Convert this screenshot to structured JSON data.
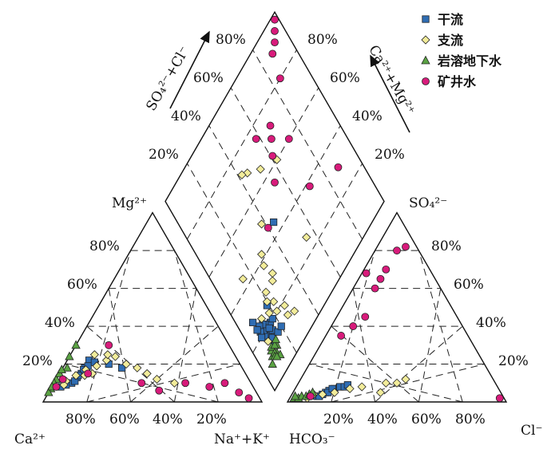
{
  "chart_data": {
    "type": "scatter",
    "series": [
      {
        "name": "干流",
        "color": "#2f6db3",
        "marker": "square",
        "cation": [
          [
            68,
            22,
            10
          ],
          [
            72,
            18,
            10
          ],
          [
            75,
            15,
            10
          ],
          [
            78,
            13,
            9
          ],
          [
            82,
            10,
            8
          ],
          [
            85,
            9,
            6
          ],
          [
            88,
            8,
            4
          ],
          [
            73,
            17,
            10
          ],
          [
            70,
            19,
            11
          ],
          [
            66,
            21,
            13
          ],
          [
            80,
            11,
            9
          ],
          [
            77,
            14,
            9
          ],
          [
            60,
            20,
            20
          ],
          [
            55,
            18,
            27
          ]
        ],
        "anion": [
          [
            85,
            3,
            12
          ],
          [
            82,
            4,
            14
          ],
          [
            80,
            5,
            15
          ],
          [
            78,
            6,
            16
          ],
          [
            75,
            7,
            18
          ],
          [
            72,
            8,
            20
          ],
          [
            70,
            8,
            22
          ],
          [
            68,
            9,
            23
          ],
          [
            84,
            3,
            13
          ],
          [
            79,
            5,
            16
          ],
          [
            76,
            7,
            17
          ]
        ],
        "diamond": [
          [
            16,
            14
          ],
          [
            18,
            12
          ],
          [
            20,
            16
          ],
          [
            19,
            10
          ],
          [
            22,
            13
          ],
          [
            21,
            11
          ],
          [
            17,
            15
          ],
          [
            15,
            13
          ],
          [
            23,
            12
          ],
          [
            24,
            10
          ],
          [
            20,
            18
          ],
          [
            19,
            14
          ],
          [
            14,
            17
          ],
          [
            28,
            8
          ],
          [
            26,
            19
          ],
          [
            12,
            12
          ],
          [
            22,
            9
          ],
          [
            20,
            8
          ],
          [
            14,
            20
          ],
          [
            45,
            44
          ],
          [
            24,
            8
          ]
        ]
      },
      {
        "name": "支流",
        "color": "#f2ec9a",
        "marker": "diamond",
        "cation": [
          [
            60,
            22,
            18
          ],
          [
            58,
            25,
            17
          ],
          [
            55,
            24,
            21
          ],
          [
            52,
            20,
            28
          ],
          [
            48,
            18,
            34
          ],
          [
            45,
            15,
            40
          ],
          [
            42,
            12,
            46
          ],
          [
            35,
            10,
            55
          ],
          [
            72,
            17,
            11
          ],
          [
            78,
            14,
            8
          ],
          [
            84,
            11,
            5
          ],
          [
            86,
            9,
            5
          ],
          [
            70,
            15,
            15
          ],
          [
            66,
            19,
            15
          ],
          [
            74,
            14,
            12
          ],
          [
            64,
            25,
            11
          ]
        ],
        "anion": [
          [
            90,
            2,
            8
          ],
          [
            86,
            4,
            10
          ],
          [
            82,
            4,
            14
          ],
          [
            76,
            5,
            19
          ],
          [
            68,
            7,
            25
          ],
          [
            62,
            8,
            30
          ],
          [
            55,
            5,
            40
          ],
          [
            50,
            10,
            40
          ],
          [
            45,
            10,
            45
          ],
          [
            40,
            12,
            48
          ]
        ],
        "diamond": [
          [
            14,
            26
          ],
          [
            20,
            22
          ],
          [
            24,
            23
          ],
          [
            18,
            27
          ],
          [
            12,
            30
          ],
          [
            25,
            13
          ],
          [
            27,
            20
          ],
          [
            23,
            18
          ],
          [
            30,
            28
          ],
          [
            32,
            30
          ],
          [
            38,
            28
          ],
          [
            42,
            30
          ],
          [
            44,
            15
          ],
          [
            50,
            38
          ],
          [
            60,
            62
          ],
          [
            65,
            52
          ],
          [
            70,
            45
          ],
          [
            72,
            42
          ],
          [
            26,
            55
          ],
          [
            30,
            22
          ],
          [
            16,
            10
          ]
        ]
      },
      {
        "name": "岩溶地下水",
        "color": "#5aa243",
        "marker": "triangle",
        "cation": [
          [
            88,
            12,
            0
          ],
          [
            90,
            10,
            0
          ],
          [
            93,
            7,
            0
          ],
          [
            95,
            5,
            0
          ],
          [
            85,
            15,
            0
          ],
          [
            80,
            18,
            2
          ],
          [
            76,
            24,
            0
          ],
          [
            70,
            30,
            0
          ],
          [
            83,
            17,
            0
          ],
          [
            92,
            8,
            0
          ]
        ],
        "anion": [
          [
            96,
            2,
            2
          ],
          [
            94,
            2,
            4
          ],
          [
            92,
            3,
            5
          ],
          [
            90,
            3,
            7
          ],
          [
            88,
            4,
            8
          ],
          [
            86,
            5,
            9
          ],
          [
            95,
            3,
            2
          ]
        ],
        "diamond": [
          [
            8,
            6
          ],
          [
            10,
            8
          ],
          [
            12,
            9
          ],
          [
            9,
            11
          ],
          [
            7,
            12
          ],
          [
            11,
            13
          ],
          [
            13,
            10
          ],
          [
            10,
            10
          ],
          [
            9,
            9
          ],
          [
            12,
            12
          ],
          [
            13,
            14
          ],
          [
            8,
            10
          ]
        ]
      },
      {
        "name": "矿井水",
        "color": "#d81b7b",
        "marker": "circle",
        "cation": [
          [
            55,
            30,
            15
          ],
          [
            50,
            10,
            40
          ],
          [
            44,
            6,
            50
          ],
          [
            30,
            10,
            60
          ],
          [
            20,
            8,
            72
          ],
          [
            12,
            10,
            78
          ],
          [
            8,
            5,
            87
          ],
          [
            5,
            2,
            93
          ],
          [
            85,
            12,
            3
          ],
          [
            72,
            15,
            13
          ],
          [
            90,
            8,
            2
          ]
        ],
        "anion": [
          [
            58,
            35,
            7
          ],
          [
            50,
            40,
            10
          ],
          [
            42,
            45,
            13
          ],
          [
            30,
            60,
            10
          ],
          [
            25,
            65,
            10
          ],
          [
            20,
            70,
            10
          ],
          [
            10,
            80,
            10
          ],
          [
            5,
            82,
            13
          ],
          [
            30,
            68,
            2
          ],
          [
            2,
            2,
            96
          ],
          [
            88,
            3,
            9
          ]
        ],
        "diamond": [
          [
            90,
            88
          ],
          [
            75,
            58
          ],
          [
            60,
            73
          ],
          [
            80,
            85
          ],
          [
            55,
            55
          ],
          [
            30,
            88
          ],
          [
            46,
            40
          ],
          [
            63,
            61
          ],
          [
            68,
            65
          ],
          [
            72,
            68
          ],
          [
            95,
            95
          ],
          [
            92,
            92
          ],
          [
            98,
            98
          ],
          [
            38,
            70
          ]
        ]
      }
    ],
    "cation_triangle": {
      "corner_labels": {
        "left": "Ca²⁺",
        "right": "Na⁺+K⁺",
        "top": "Mg²⁺"
      },
      "left_ticks": [
        "20%",
        "40%",
        "60%",
        "80%"
      ],
      "bottom_ticks": [
        "80%",
        "60%",
        "40%",
        "20%"
      ]
    },
    "anion_triangle": {
      "corner_labels": {
        "left": "HCO₃⁻",
        "right": "Cl⁻",
        "top": "SO₄²⁻"
      },
      "right_ticks": [
        "20%",
        "40%",
        "60%",
        "80%"
      ],
      "bottom_ticks": [
        "20%",
        "40%",
        "60%",
        "80%"
      ]
    },
    "diamond_plot": {
      "left_axis_label": "SO₄²⁻+Cl⁻",
      "right_axis_label": "Ca²⁺+Mg²⁺",
      "left_ticks": [
        "20%",
        "40%",
        "60%",
        "80%"
      ],
      "right_ticks": [
        "80%",
        "60%",
        "40%",
        "20%"
      ]
    },
    "grid": true,
    "legend_position": "top-right"
  }
}
